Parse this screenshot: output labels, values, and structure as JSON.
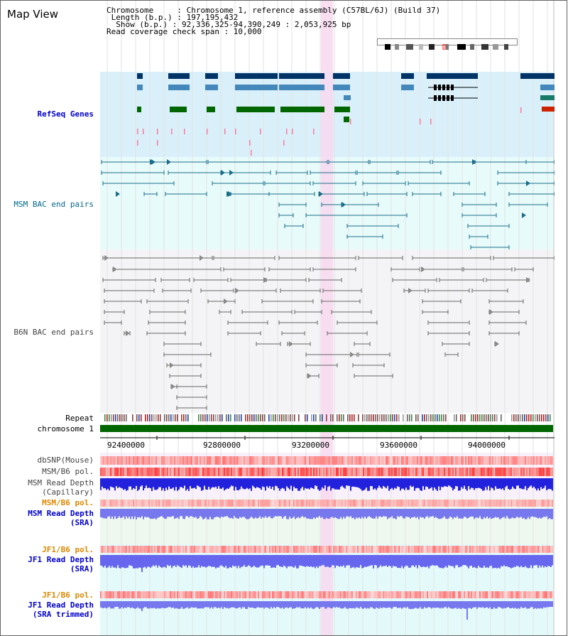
{
  "title": "Map View",
  "header": {
    "line1": "Chromosome     : Chromosome 1, reference assembly (C57BL/6J) (Build 37)",
    "line2": " Length (b.p.) : 197,195,432",
    "line3": "  Show (b.p.) : 92,336,325-94,390,249 : 2,053,925 bp",
    "line4": "Read coverage check span : 10,000"
  },
  "tracks": {
    "refseq": "RefSeq Genes",
    "msm_bac": "MSM BAC end pairs",
    "b6n_bac": "B6N BAC end pairs",
    "repeat": "Repeat",
    "chromosome": "chromosome 1",
    "dbsnp": "dbSNP(Mouse)",
    "msm_b6_pol": "MSM/B6 pol.",
    "msm_depth_cap_1": "MSM Read Depth",
    "msm_depth_cap_2": "(Capillary)",
    "msm_b6_pol2": "MSM/B6 pol.",
    "msm_depth_sra_1": "MSM Read Depth",
    "msm_depth_sra_2": "(SRA)",
    "jf1_b6_pol": "JF1/B6 pol.",
    "jf1_depth_sra_1": "JF1 Read Depth",
    "jf1_depth_sra_2": "(SRA)",
    "jf1_b6_pol2": "JF1/B6 pol.",
    "jf1_depth_trim_1": "JF1 Read Depth",
    "jf1_depth_trim_2": "(SRA trimmed)"
  },
  "axis": {
    "ticks": [
      "92400000",
      "92800000",
      "93200000",
      "93600000",
      "94000000"
    ]
  },
  "colors": {
    "refseq_bg": "#d9f0fb",
    "msm_bg": "#e8fbfb",
    "b6n_bg": "#f4f4f6",
    "chrom_green": "#006600",
    "highlight": "#f8d8f0",
    "gene_dark": "#003366",
    "gene_mid": "#4488bb",
    "gene_green": "#006600"
  }
}
